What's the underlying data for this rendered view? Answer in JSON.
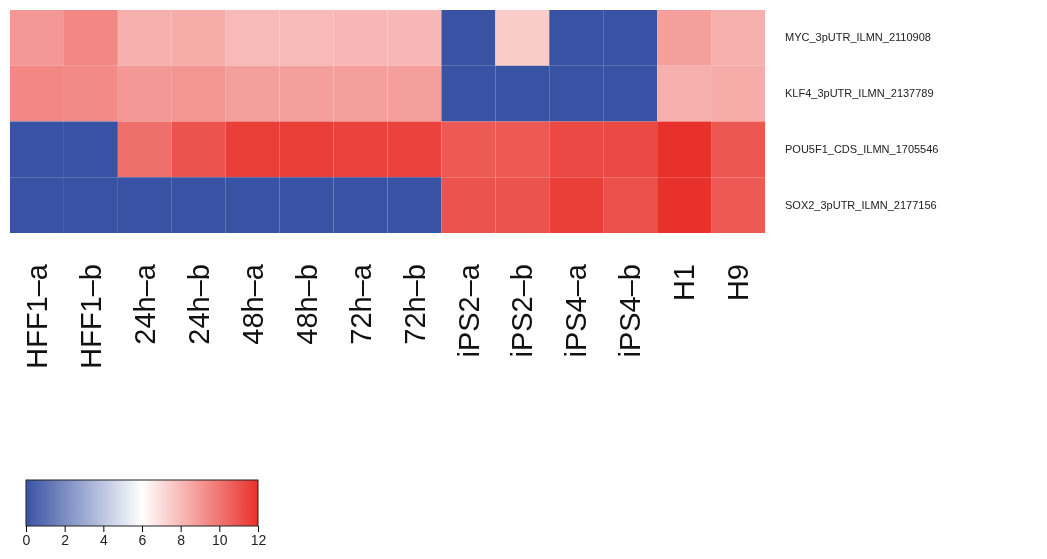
{
  "chart_data": {
    "type": "heatmap",
    "categories": [
      "HFF1–a",
      "HFF1–b",
      "24h–a",
      "24h–b",
      "48h–a",
      "48h–b",
      "72h–a",
      "72h–b",
      "iPS2–a",
      "iPS2–b",
      "iPS4–a",
      "iPS4–b",
      "H1",
      "H9"
    ],
    "y_categories": [
      "MYC_3pUTR_ILMN_2110908",
      "KLF4_3pUTR_ILMN_2137789",
      "POU5F1_CDS_ILMN_1705546",
      "SOX2_3pUTR_ILMN_2177156"
    ],
    "cells": [
      [
        9.0,
        9.5,
        8.3,
        8.4,
        8.0,
        8.0,
        8.1,
        8.1,
        0,
        7.5,
        0,
        0,
        8.8,
        8.3
      ],
      [
        9.5,
        9.4,
        9.0,
        9.1,
        8.8,
        8.8,
        8.8,
        8.8,
        0,
        0,
        0,
        0,
        8.3,
        8.4
      ],
      [
        0,
        0,
        10.2,
        11.0,
        11.6,
        11.6,
        11.5,
        11.5,
        10.8,
        10.8,
        11.3,
        11.3,
        12.0,
        10.9
      ],
      [
        0,
        0,
        0,
        0,
        0,
        0,
        0,
        0,
        11.0,
        11.0,
        11.6,
        11.1,
        12.0,
        10.8
      ]
    ],
    "clim": [
      0,
      12
    ],
    "cticks": [
      0,
      2,
      4,
      6,
      8,
      10,
      12
    ]
  }
}
